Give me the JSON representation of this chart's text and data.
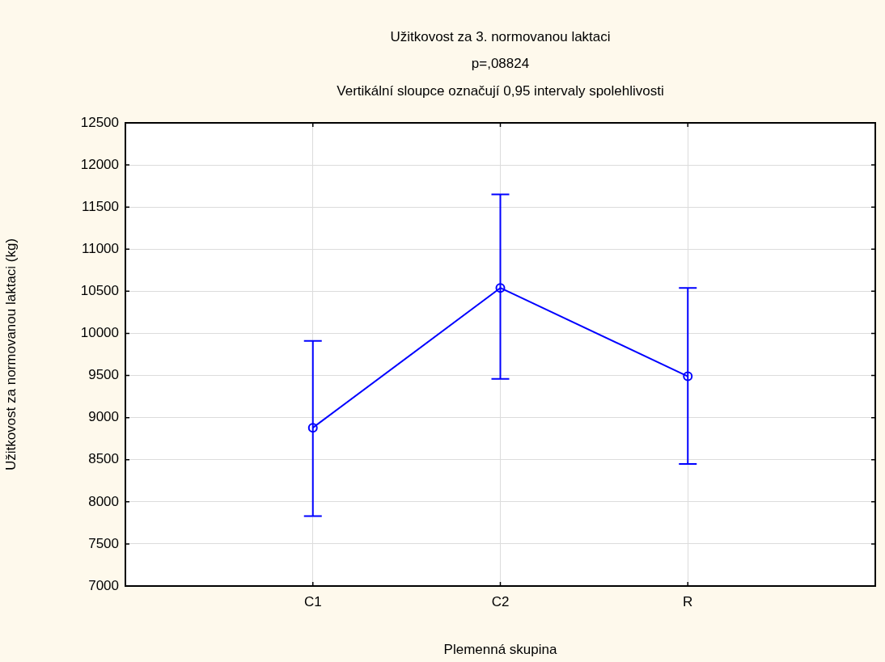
{
  "chart_data": {
    "type": "line",
    "title": "Užitkovost za 3. normovanou laktaci",
    "subtitle": "p=,08824",
    "annotations": [
      "Vertikální sloupce označují 0,95 intervaly spolehlivosti"
    ],
    "xlabel": "Plemenná skupina",
    "ylabel": "Užitkovost za normovanou laktaci (kg)",
    "categories": [
      "C1",
      "C2",
      "R"
    ],
    "series": [
      {
        "color": "#0000ff",
        "values": [
          8880,
          10540,
          9490
        ],
        "errors": [
          [
            7830,
            9910
          ],
          [
            9460,
            11650
          ],
          [
            8450,
            10540
          ]
        ]
      }
    ],
    "ylim": [
      7000,
      12500
    ],
    "yticks": [
      7000,
      7500,
      8000,
      8500,
      9000,
      9500,
      10000,
      10500,
      11000,
      11500,
      12000,
      12500
    ],
    "grid": true,
    "legend": false,
    "marker": "circle",
    "line_style": "solid"
  }
}
